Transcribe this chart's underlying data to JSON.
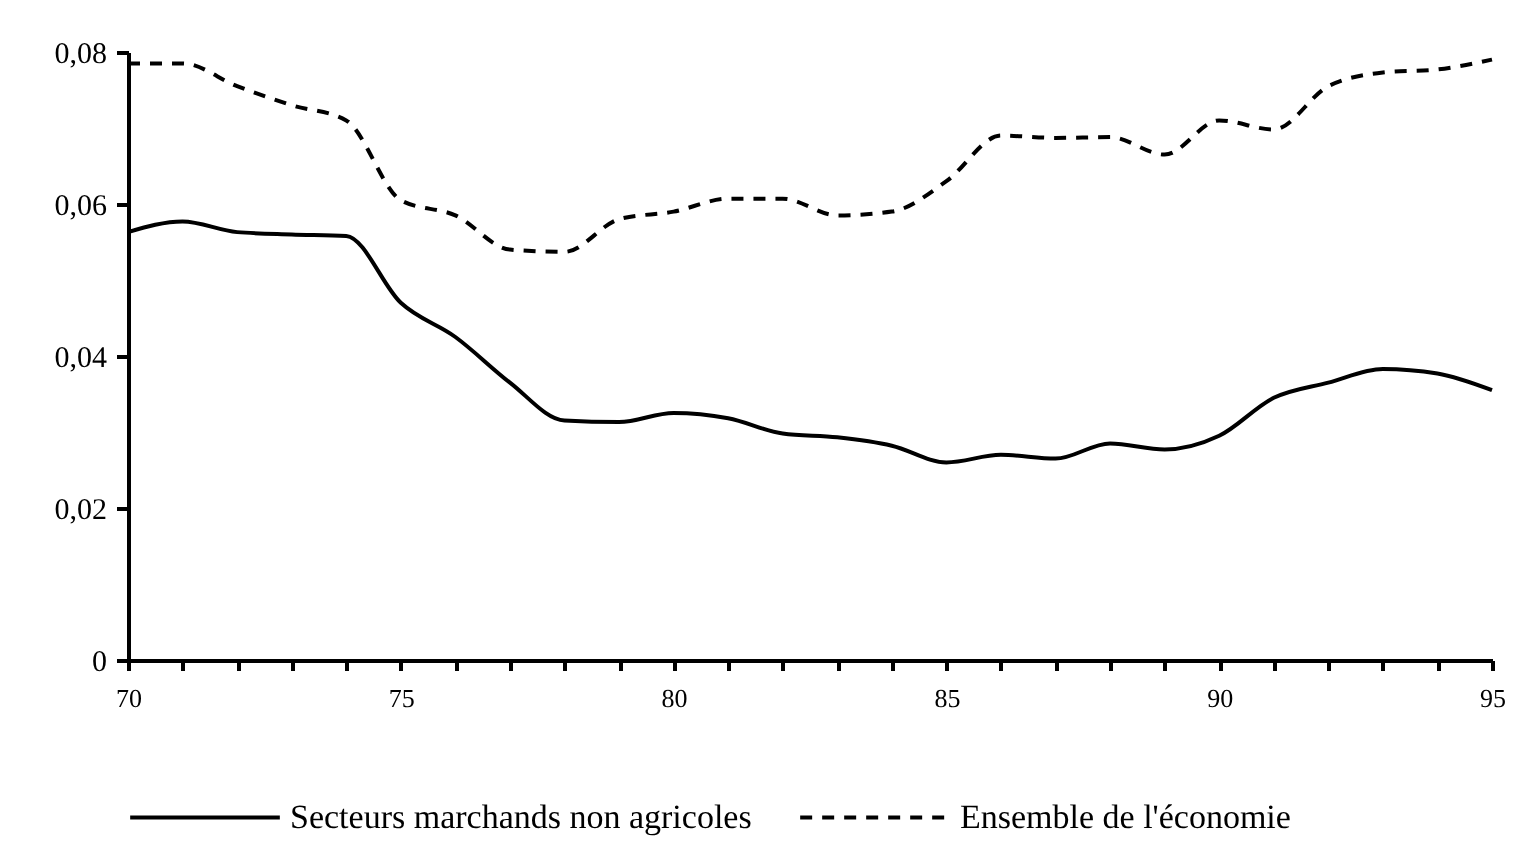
{
  "chart_data": {
    "type": "line",
    "x": [
      70,
      71,
      72,
      73,
      74,
      75,
      76,
      77,
      78,
      79,
      80,
      81,
      82,
      83,
      84,
      85,
      86,
      87,
      88,
      89,
      90,
      91,
      92,
      93,
      94,
      95
    ],
    "series": [
      {
        "name": "Secteurs marchands non agricoles",
        "color": "#000000",
        "line_style": "solid",
        "values": [
          0.0563,
          0.0577,
          0.0563,
          0.056,
          0.0558,
          0.047,
          0.0425,
          0.0365,
          0.0315,
          0.0313,
          0.0325,
          0.0318,
          0.0298,
          0.0293,
          0.0282,
          0.026,
          0.027,
          0.0265,
          0.0285,
          0.0277,
          0.0295,
          0.0345,
          0.0365,
          0.0383,
          0.0377,
          0.0355
        ]
      },
      {
        "name": "Ensemble de l'économie",
        "color": "#000000",
        "line_style": "dashed",
        "values": [
          0.0785,
          0.0785,
          0.0755,
          0.073,
          0.071,
          0.0605,
          0.0585,
          0.054,
          0.0537,
          0.058,
          0.059,
          0.0607,
          0.0607,
          0.0585,
          0.059,
          0.063,
          0.069,
          0.0687,
          0.0688,
          0.0665,
          0.071,
          0.0698,
          0.0755,
          0.0773,
          0.0777,
          0.079
        ]
      }
    ],
    "xlim": [
      70,
      95
    ],
    "xticks": [
      70,
      {
        "value": 71,
        "label": null
      },
      {
        "value": 72,
        "label": null
      },
      {
        "value": 73,
        "label": null
      },
      {
        "value": 74,
        "label": null
      },
      75,
      {
        "value": 76,
        "label": null
      },
      {
        "value": 77,
        "label": null
      },
      {
        "value": 78,
        "label": null
      },
      {
        "value": 79,
        "label": null
      },
      80,
      {
        "value": 81,
        "label": null
      },
      {
        "value": 82,
        "label": null
      },
      {
        "value": 83,
        "label": null
      },
      {
        "value": 84,
        "label": null
      },
      85,
      {
        "value": 86,
        "label": null
      },
      {
        "value": 87,
        "label": null
      },
      {
        "value": 88,
        "label": null
      },
      {
        "value": 89,
        "label": null
      },
      90,
      {
        "value": 91,
        "label": null
      },
      {
        "value": 92,
        "label": null
      },
      {
        "value": 93,
        "label": null
      },
      {
        "value": 94,
        "label": null
      },
      95
    ],
    "ylim": [
      0,
      0.08
    ],
    "yticks": [
      0,
      {
        "value": 0.02,
        "label": "0,02"
      },
      {
        "value": 0.04,
        "label": "0,04"
      },
      {
        "value": 0.06,
        "label": "0,06"
      },
      {
        "value": 0.08,
        "label": "0,08"
      }
    ],
    "grid": false,
    "legend": "bottom"
  }
}
